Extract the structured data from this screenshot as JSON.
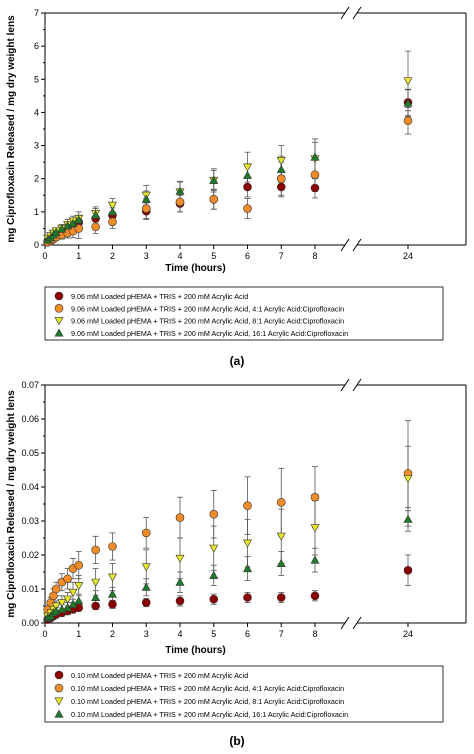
{
  "chart_data": [
    {
      "type": "scatter",
      "panel_label": "(a)",
      "xlabel": "Time (hours)",
      "ylabel": "mg Ciprofloxacin Released / mg dry weight lens",
      "ylim": [
        0,
        7
      ],
      "yticks": [
        "0",
        "1",
        "2",
        "3",
        "4",
        "5",
        "6",
        "7"
      ],
      "xticks": [
        "0",
        "1",
        "2",
        "3",
        "4",
        "5",
        "6",
        "7",
        "8",
        "24"
      ],
      "x_axis_break": "between 8 and 24",
      "grid": false,
      "legend_position": "below",
      "series": [
        {
          "name": "9.06 mM Loaded pHEMA + TRIS + 200 mM Acrylic Acid",
          "marker": "circle",
          "color": "#8b0000",
          "x": [
            0.08,
            0.17,
            0.25,
            0.33,
            0.5,
            0.67,
            0.83,
            1,
            1.5,
            2,
            3,
            4,
            5,
            6,
            7,
            8,
            24
          ],
          "y": [
            0.12,
            0.18,
            0.25,
            0.32,
            0.42,
            0.52,
            0.58,
            0.68,
            0.8,
            0.9,
            1.02,
            1.25,
            1.38,
            1.75,
            1.75,
            1.72,
            4.3
          ],
          "err": [
            0.05,
            0.06,
            0.08,
            0.08,
            0.1,
            0.12,
            0.12,
            0.15,
            0.2,
            0.22,
            0.25,
            0.25,
            0.3,
            0.3,
            0.3,
            0.3,
            0.4
          ]
        },
        {
          "name": "9.06 mM Loaded pHEMA + TRIS + 200 mM Acrylic Acid, 4:1 Acrylic Acid:Ciprofloxacin",
          "marker": "circle",
          "color": "#f28c28",
          "x": [
            0.08,
            0.17,
            0.25,
            0.33,
            0.5,
            0.67,
            0.83,
            1,
            1.5,
            2,
            3,
            4,
            5,
            6,
            7,
            8,
            24
          ],
          "y": [
            0.08,
            0.12,
            0.18,
            0.24,
            0.3,
            0.36,
            0.42,
            0.5,
            0.55,
            0.7,
            1.1,
            1.3,
            1.38,
            1.1,
            2.0,
            2.12,
            3.75
          ],
          "err": [
            0.05,
            0.06,
            0.08,
            0.1,
            0.12,
            0.15,
            0.2,
            0.3,
            0.2,
            0.2,
            0.3,
            0.3,
            0.3,
            0.3,
            0.5,
            0.5,
            0.4
          ]
        },
        {
          "name": "9.06 mM Loaded pHEMA + TRIS + 200 mM Acrylic Acid, 8:1 Acrylic Acid:Ciprofloxacin",
          "marker": "triangle-down",
          "color": "#e6e62a",
          "x": [
            0.08,
            0.17,
            0.25,
            0.33,
            0.5,
            0.67,
            0.83,
            1,
            1.5,
            2,
            3,
            4,
            5,
            6,
            7,
            8,
            24
          ],
          "y": [
            0.2,
            0.28,
            0.35,
            0.42,
            0.5,
            0.62,
            0.72,
            0.8,
            0.95,
            1.2,
            1.5,
            1.6,
            1.95,
            2.35,
            2.55,
            2.6,
            4.95
          ],
          "err": [
            0.06,
            0.08,
            0.1,
            0.1,
            0.12,
            0.15,
            0.15,
            0.2,
            0.2,
            0.2,
            0.3,
            0.3,
            0.35,
            0.45,
            0.45,
            0.6,
            0.9
          ]
        },
        {
          "name": "9.06 mM Loaded pHEMA + TRIS + 200 mM Acrylic Acid, 16:1 Acrylic Acid:Ciprofloxacin",
          "marker": "triangle-up",
          "color": "#1e7b2a",
          "x": [
            0.08,
            0.17,
            0.25,
            0.33,
            0.5,
            0.67,
            0.83,
            1,
            1.5,
            2,
            3,
            4,
            5,
            6,
            7,
            8,
            24
          ],
          "y": [
            0.15,
            0.22,
            0.3,
            0.38,
            0.48,
            0.58,
            0.65,
            0.75,
            0.9,
            1.0,
            1.38,
            1.62,
            1.95,
            2.1,
            2.28,
            2.65,
            4.28
          ],
          "err": [
            0.05,
            0.06,
            0.08,
            0.1,
            0.1,
            0.12,
            0.12,
            0.15,
            0.2,
            0.2,
            0.25,
            0.3,
            0.3,
            0.35,
            0.4,
            0.45,
            0.4
          ]
        }
      ]
    },
    {
      "type": "scatter",
      "panel_label": "(b)",
      "xlabel": "Time (hours)",
      "ylabel": "mg Ciprofloxacin Released / mg dry weight lens",
      "ylim": [
        0,
        0.07
      ],
      "yticks": [
        "0.00",
        "0.01",
        "0.02",
        "0.03",
        "0.04",
        "0.05",
        "0.06",
        "0.07"
      ],
      "xticks": [
        "0",
        "1",
        "2",
        "3",
        "4",
        "5",
        "6",
        "7",
        "8",
        "24"
      ],
      "x_axis_break": "between 8 and 24",
      "grid": false,
      "legend_position": "below",
      "series": [
        {
          "name": "0.10 mM Loaded pHEMA + TRIS + 200 mM Acrylic Acid",
          "marker": "circle",
          "color": "#8b0000",
          "x": [
            0.08,
            0.17,
            0.25,
            0.33,
            0.5,
            0.67,
            0.83,
            1,
            1.5,
            2,
            3,
            4,
            5,
            6,
            7,
            8,
            24
          ],
          "y": [
            0.001,
            0.0015,
            0.002,
            0.0025,
            0.003,
            0.0035,
            0.004,
            0.0045,
            0.005,
            0.0055,
            0.006,
            0.0065,
            0.007,
            0.0075,
            0.0075,
            0.008,
            0.0155
          ],
          "err": [
            0.0005,
            0.0005,
            0.0008,
            0.001,
            0.001,
            0.001,
            0.001,
            0.001,
            0.001,
            0.0012,
            0.0012,
            0.0015,
            0.0015,
            0.0015,
            0.0015,
            0.0015,
            0.0045
          ]
        },
        {
          "name": "0.10 mM Loaded pHEMA + TRIS + 200 mM Acrylic Acid, 4:1 Acrylic Acid:Ciprofloxacin",
          "marker": "circle",
          "color": "#f28c28",
          "x": [
            0.08,
            0.17,
            0.25,
            0.33,
            0.5,
            0.67,
            0.83,
            1,
            1.5,
            2,
            3,
            4,
            5,
            6,
            7,
            8,
            24
          ],
          "y": [
            0.004,
            0.006,
            0.008,
            0.01,
            0.012,
            0.013,
            0.016,
            0.017,
            0.0215,
            0.0225,
            0.0265,
            0.031,
            0.032,
            0.0345,
            0.0355,
            0.037,
            0.044
          ],
          "err": [
            0.001,
            0.0015,
            0.002,
            0.002,
            0.0025,
            0.003,
            0.003,
            0.004,
            0.004,
            0.004,
            0.0045,
            0.006,
            0.007,
            0.0085,
            0.01,
            0.009,
            0.0155
          ]
        },
        {
          "name": "0.10 mM Loaded pHEMA + TRIS + 200 mM Acrylic Acid, 8:1 Acrylic Acid:Ciprofloxacin",
          "marker": "triangle-down",
          "color": "#e6e62a",
          "x": [
            0.08,
            0.17,
            0.25,
            0.33,
            0.5,
            0.67,
            0.83,
            1,
            1.5,
            2,
            3,
            4,
            5,
            6,
            7,
            8,
            24
          ],
          "y": [
            0.002,
            0.003,
            0.004,
            0.005,
            0.006,
            0.007,
            0.009,
            0.011,
            0.012,
            0.0135,
            0.0165,
            0.019,
            0.022,
            0.0235,
            0.0255,
            0.028,
            0.0425
          ],
          "err": [
            0.001,
            0.001,
            0.0015,
            0.0015,
            0.002,
            0.002,
            0.003,
            0.003,
            0.004,
            0.004,
            0.005,
            0.006,
            0.0065,
            0.007,
            0.008,
            0.008,
            0.0095
          ]
        },
        {
          "name": "0.10 mM Loaded pHEMA + TRIS + 200 mM Acrylic Acid, 16:1 Acrylic Acid:Ciprofloxacin",
          "marker": "triangle-up",
          "color": "#1e7b2a",
          "x": [
            0.08,
            0.17,
            0.25,
            0.33,
            0.5,
            0.67,
            0.83,
            1,
            1.5,
            2,
            3,
            4,
            5,
            6,
            7,
            8,
            24
          ],
          "y": [
            0.0015,
            0.002,
            0.003,
            0.0035,
            0.004,
            0.0045,
            0.0055,
            0.0065,
            0.0075,
            0.0085,
            0.0105,
            0.012,
            0.014,
            0.016,
            0.0175,
            0.0185,
            0.0305
          ],
          "err": [
            0.0005,
            0.001,
            0.001,
            0.001,
            0.0015,
            0.0015,
            0.0015,
            0.002,
            0.002,
            0.002,
            0.0025,
            0.003,
            0.003,
            0.0035,
            0.0035,
            0.0035,
            0.0035
          ]
        }
      ]
    }
  ]
}
